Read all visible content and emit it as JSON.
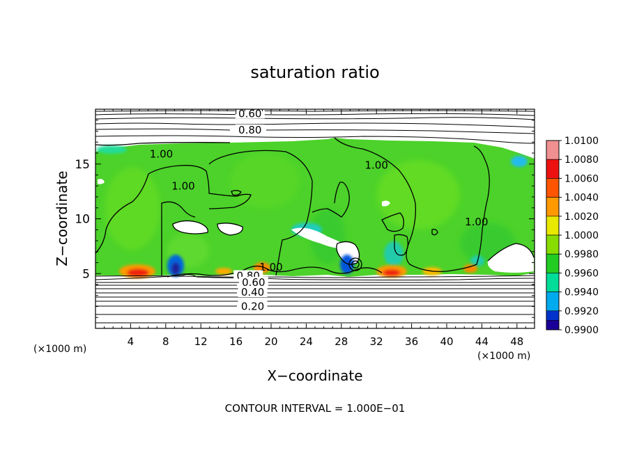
{
  "chart_data": {
    "type": "heatmap",
    "title": "saturation ratio",
    "xlabel": "X−coordinate",
    "ylabel": "Z−coordinate",
    "x_unit": "(×1000 m)",
    "x_unit_right": "(×1000 m)",
    "xlim": [
      0,
      50
    ],
    "ylim": [
      0,
      20
    ],
    "x_ticks": [
      4,
      8,
      12,
      16,
      20,
      24,
      28,
      32,
      36,
      40,
      44,
      48
    ],
    "y_ticks": [
      5,
      10,
      15
    ],
    "footer": "CONTOUR INTERVAL = 1.000E−01",
    "colorbar": {
      "levels": [
        "1.0100",
        "1.0080",
        "1.0060",
        "1.0040",
        "1.0020",
        "1.0000",
        "0.9980",
        "0.9960",
        "0.9940",
        "0.9920",
        "0.9900"
      ],
      "colors": [
        "#f09090",
        "#ee1111",
        "#ff5500",
        "#ff9900",
        "#e8e800",
        "#88dd00",
        "#22cc22",
        "#00dd99",
        "#00aaee",
        "#0033cc",
        "#1a0099"
      ]
    },
    "contour_labels": [
      {
        "text": "0.60",
        "x": 17.6,
        "y": 19.6
      },
      {
        "text": "0.80",
        "x": 17.6,
        "y": 18.1
      },
      {
        "text": "1.00",
        "x": 7.5,
        "y": 15.9
      },
      {
        "text": "1.00",
        "x": 10.0,
        "y": 13.0
      },
      {
        "text": "1.00",
        "x": 32.0,
        "y": 14.9
      },
      {
        "text": "1.00",
        "x": 43.4,
        "y": 9.7
      },
      {
        "text": "1.00",
        "x": 20.0,
        "y": 5.6
      },
      {
        "text": "0.80",
        "x": 17.4,
        "y": 4.8
      },
      {
        "text": "0.60",
        "x": 18.0,
        "y": 4.2
      },
      {
        "text": "0.40",
        "x": 17.9,
        "y": 3.3
      },
      {
        "text": "0.20",
        "x": 17.9,
        "y": 2.0
      }
    ],
    "field_region": {
      "z_bottom": 5.0,
      "z_top_range": [
        16.2,
        17.0
      ],
      "dominant_value": 1.0006
    },
    "hotspots": [
      {
        "x": 4.8,
        "z": 5.1,
        "value": 1.009
      },
      {
        "x": 9.3,
        "z": 5.2,
        "value": 0.991
      },
      {
        "x": 14.6,
        "z": 5.2,
        "value": 1.004
      },
      {
        "x": 19.0,
        "z": 5.2,
        "value": 1.005
      },
      {
        "x": 29.0,
        "z": 5.4,
        "value": 0.993
      },
      {
        "x": 33.4,
        "z": 5.1,
        "value": 1.008
      },
      {
        "x": 38.4,
        "z": 5.1,
        "value": 1.004
      },
      {
        "x": 42.6,
        "z": 5.3,
        "value": 1.004
      }
    ]
  }
}
